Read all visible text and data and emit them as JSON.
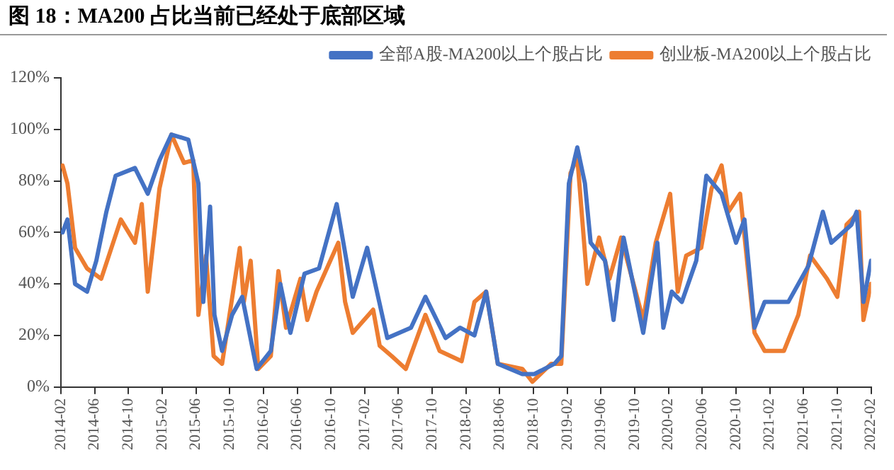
{
  "chart_data": {
    "type": "line",
    "title": "图 18：MA200 占比当前已经处于底部区域",
    "xlim": [
      "2014-02",
      "2022-02"
    ],
    "xticks": [
      "2014-02",
      "2014-06",
      "2014-10",
      "2015-02",
      "2015-06",
      "2015-10",
      "2016-02",
      "2016-06",
      "2016-10",
      "2017-02",
      "2017-06",
      "2017-10",
      "2018-02",
      "2018-06",
      "2018-10",
      "2019-02",
      "2019-06",
      "2019-10",
      "2020-02",
      "2020-06",
      "2020-10",
      "2021-02",
      "2021-06",
      "2021-10",
      "2022-02"
    ],
    "ylim": [
      0,
      120
    ],
    "yticks": [
      {
        "value": 0,
        "label": "0%"
      },
      {
        "value": 20,
        "label": "20%"
      },
      {
        "value": 40,
        "label": "40%"
      },
      {
        "value": 60,
        "label": "60%"
      },
      {
        "value": 80,
        "label": "80%"
      },
      {
        "value": 100,
        "label": "100%"
      },
      {
        "value": 120,
        "label": "120%"
      }
    ],
    "grid": false,
    "legend": "top right",
    "marker": "none",
    "line_style": "solid",
    "series": [
      {
        "name": "全部A股-MA200以上个股占比",
        "color": "#4472c4",
        "x": [
          "2014-02-07",
          "2014-02-25",
          "2014-03-22",
          "2014-05-04",
          "2014-06-07",
          "2014-07-13",
          "2014-08-16",
          "2014-10-25",
          "2014-12-10",
          "2015-01-22",
          "2015-03-04",
          "2015-05-04",
          "2015-06-10",
          "2015-06-28",
          "2015-07-22",
          "2015-08-07",
          "2015-09-04",
          "2015-10-10",
          "2015-11-16",
          "2016-01-07",
          "2016-02-28",
          "2016-04-01",
          "2016-05-07",
          "2016-06-28",
          "2016-08-19",
          "2016-10-22",
          "2016-12-19",
          "2017-02-10",
          "2017-04-22",
          "2017-07-16",
          "2017-09-07",
          "2017-11-19",
          "2018-01-10",
          "2018-03-01",
          "2018-04-13",
          "2018-05-25",
          "2018-08-22",
          "2018-10-04",
          "2018-12-16",
          "2019-01-10",
          "2019-02-07",
          "2019-03-07",
          "2019-04-04",
          "2019-04-25",
          "2019-06-16",
          "2019-07-16",
          "2019-08-22",
          "2019-11-01",
          "2019-12-22",
          "2020-01-13",
          "2020-02-13",
          "2020-03-19",
          "2020-05-10",
          "2020-06-16",
          "2020-08-10",
          "2020-10-01",
          "2020-11-01",
          "2020-12-07",
          "2021-01-13",
          "2021-04-07",
          "2021-06-19",
          "2021-08-10",
          "2021-09-10",
          "2021-11-22",
          "2021-12-10",
          "2022-01-04",
          "2022-02-01"
        ],
        "values": [
          60,
          65,
          40,
          37,
          49,
          68,
          82,
          85,
          75,
          88,
          98,
          96,
          79,
          33,
          70,
          28,
          14,
          28,
          35,
          7,
          14,
          40,
          21,
          44,
          46,
          71,
          35,
          54,
          19,
          23,
          35,
          19,
          23,
          20,
          37,
          9,
          5,
          5,
          9,
          12,
          79,
          93,
          79,
          56,
          49,
          26,
          58,
          21,
          56,
          23,
          37,
          33,
          49,
          82,
          75,
          56,
          65,
          23,
          33,
          33,
          47,
          68,
          56,
          63,
          68,
          33,
          49
        ]
      },
      {
        "name": "创业板-MA200以上个股占比",
        "color": "#ed7d31",
        "x": [
          "2014-02-07",
          "2014-02-25",
          "2014-03-22",
          "2014-05-04",
          "2014-06-25",
          "2014-09-04",
          "2014-10-25",
          "2014-11-19",
          "2014-12-10",
          "2015-01-22",
          "2015-03-04",
          "2015-04-19",
          "2015-05-22",
          "2015-06-10",
          "2015-07-07",
          "2015-08-04",
          "2015-09-04",
          "2015-11-07",
          "2015-11-22",
          "2015-12-16",
          "2016-01-13",
          "2016-02-28",
          "2016-03-25",
          "2016-04-22",
          "2016-06-13",
          "2016-07-07",
          "2016-08-10",
          "2016-10-28",
          "2016-11-22",
          "2016-12-19",
          "2017-03-01",
          "2017-03-25",
          "2017-05-07",
          "2017-06-28",
          "2017-09-07",
          "2017-10-28",
          "2018-01-16",
          "2018-03-01",
          "2018-04-13",
          "2018-05-25",
          "2018-08-22",
          "2018-09-28",
          "2018-12-04",
          "2019-01-10",
          "2019-02-13",
          "2019-03-07",
          "2019-04-13",
          "2019-05-25",
          "2019-07-01",
          "2019-08-13",
          "2019-11-01",
          "2019-12-16",
          "2020-02-07",
          "2020-03-04",
          "2020-04-04",
          "2020-05-28",
          "2020-07-04",
          "2020-08-10",
          "2020-09-04",
          "2020-10-16",
          "2020-12-07",
          "2021-01-13",
          "2021-03-22",
          "2021-05-13",
          "2021-06-25",
          "2021-08-25",
          "2021-10-01",
          "2021-11-04",
          "2021-12-19",
          "2022-01-04",
          "2022-02-01"
        ],
        "values": [
          86,
          79,
          54,
          46,
          42,
          65,
          56,
          71,
          37,
          77,
          98,
          87,
          88,
          28,
          51,
          12,
          9,
          54,
          33,
          49,
          7,
          12,
          45,
          23,
          42,
          26,
          37,
          56,
          33,
          21,
          30,
          16,
          12,
          7,
          28,
          14,
          10,
          33,
          37,
          9,
          7,
          2,
          9,
          9,
          83,
          89,
          40,
          58,
          42,
          58,
          26,
          56,
          75,
          37,
          51,
          54,
          77,
          86,
          68,
          75,
          21,
          14,
          14,
          28,
          51,
          42,
          35,
          63,
          68,
          26,
          40
        ]
      }
    ]
  }
}
